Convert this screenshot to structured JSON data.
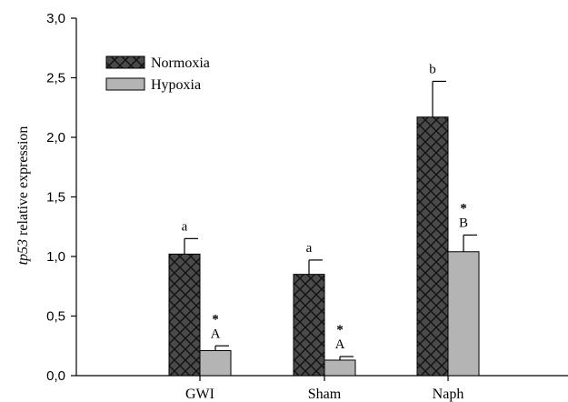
{
  "chart_data": {
    "type": "bar",
    "categories": [
      "GWI",
      "Sham",
      "Naph"
    ],
    "series": [
      {
        "name": "Normoxia",
        "color": "#4a4a4a",
        "pattern": "crosshatch",
        "values": [
          1.02,
          0.85,
          2.17
        ],
        "errors": [
          0.13,
          0.12,
          0.3
        ],
        "labels": [
          "a",
          "a",
          "b"
        ]
      },
      {
        "name": "Hypoxia",
        "color": "#b4b4b4",
        "pattern": "solid",
        "values": [
          0.21,
          0.13,
          1.04
        ],
        "errors": [
          0.04,
          0.03,
          0.14
        ],
        "labels": [
          "A",
          "A",
          "B"
        ],
        "marks": [
          "*",
          "*",
          "*"
        ]
      }
    ],
    "ylabel": {
      "italic": "tp53",
      "rest": " relative expression"
    },
    "ylim": [
      0,
      3.0
    ],
    "yticks": [
      "0,0",
      "0,5",
      "1,0",
      "1,5",
      "2,0",
      "2,5",
      "3,0"
    ],
    "ytick_values": [
      0,
      0.5,
      1.0,
      1.5,
      2.0,
      2.5,
      3.0
    ],
    "grid": false,
    "legend": "top-left"
  }
}
